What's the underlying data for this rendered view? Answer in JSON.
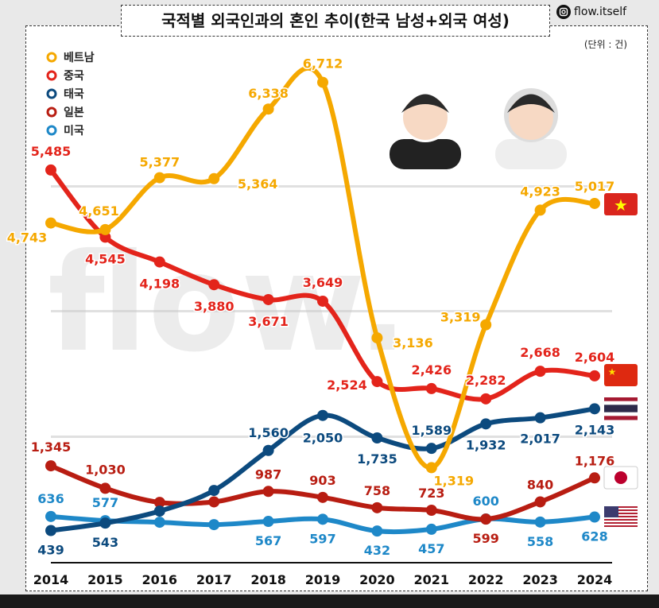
{
  "title": "국적별 외국인과의 혼인 추이(한국 남성+외국 여성)",
  "brand": "flow.itself",
  "watermark": "flow.",
  "unit": "(단위 : 건)",
  "chart_data": {
    "type": "line",
    "title": "국적별 외국인과의 혼인 추이(한국 남성+외국 여성)",
    "unit": "(단위 : 건)",
    "x": [
      "2014",
      "2015",
      "2016",
      "2017",
      "2018",
      "2019",
      "2020",
      "2021",
      "2022",
      "2023",
      "2024"
    ],
    "ylim": [
      0,
      6712
    ],
    "grid": false,
    "legend_placement": "top-left",
    "series": [
      {
        "name": "베트남",
        "color": "#f5a800",
        "values": [
          4743,
          4651,
          5377,
          5364,
          6338,
          6712,
          3136,
          1319,
          3319,
          4923,
          5017
        ],
        "labels": [
          "4,743",
          "4,651",
          "5,377",
          "5,364",
          "6,338",
          "6,712",
          "3,136",
          "1,319",
          "3,319",
          "4,923",
          "5,017"
        ]
      },
      {
        "name": "중국",
        "color": "#e3241b",
        "values": [
          5485,
          4545,
          4198,
          3880,
          3671,
          3649,
          2524,
          2426,
          2282,
          2668,
          2604
        ],
        "labels": [
          "5,485",
          "4,545",
          "4,198",
          "3,880",
          "3,671",
          "3,649",
          "2,524",
          "2,426",
          "2,282",
          "2,668",
          "2,604"
        ]
      },
      {
        "name": "태국",
        "color": "#0c4a7e",
        "values": [
          439,
          543,
          711,
          1000,
          1560,
          2050,
          1735,
          1589,
          1932,
          2017,
          2143
        ],
        "labels": [
          "439",
          "543",
          "",
          "",
          "1,560",
          "2,050",
          "1,735",
          "1,589",
          "1,932",
          "2,017",
          "2,143"
        ]
      },
      {
        "name": "일본",
        "color": "#b81d12",
        "values": [
          1345,
          1030,
          833,
          840,
          987,
          903,
          758,
          723,
          599,
          840,
          1176
        ],
        "labels": [
          "1,345",
          "1,030",
          "",
          "",
          "987",
          "903",
          "758",
          "723",
          "599",
          "840",
          "1,176"
        ]
      },
      {
        "name": "미국",
        "color": "#1e88c8",
        "values": [
          636,
          577,
          555,
          522,
          567,
          597,
          432,
          457,
          600,
          558,
          628
        ],
        "labels": [
          "636",
          "577",
          "",
          "",
          "567",
          "597",
          "432",
          "457",
          "600",
          "558",
          "628"
        ]
      }
    ]
  }
}
